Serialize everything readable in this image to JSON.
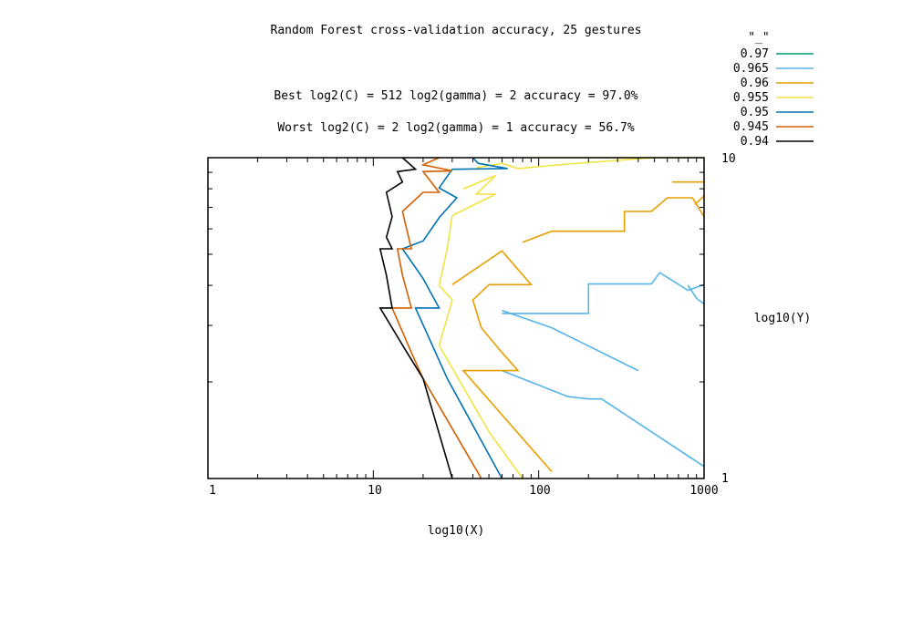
{
  "chart_data": {
    "type": "contour",
    "title": "Random Forest cross-validation accuracy, 25 gestures",
    "annotations": [
      "Best log2(C) = 512  log2(gamma) = 2  accuracy = 97.0%",
      "Worst log2(C) = 2  log2(gamma) = 1   accuracy = 56.7%"
    ],
    "xlabel": "log10(X)",
    "ylabel": "log10(Y)",
    "xscale": "log",
    "yscale": "log",
    "xlim": [
      1,
      1000
    ],
    "ylim": [
      1,
      10
    ],
    "xticks": [
      "1",
      "10",
      "100",
      "1000"
    ],
    "yticks": [
      "1",
      "10"
    ],
    "grid": false,
    "legend_title": "\"_\"",
    "legend_position": "top-right",
    "series": [
      {
        "name": "0.97",
        "color": "#009e73",
        "points": []
      },
      {
        "name": "0.965",
        "color": "#56b4e9",
        "points": [
          [
            60,
            3.27
          ],
          [
            72,
            3.27
          ],
          [
            200,
            3.27
          ],
          [
            200,
            4.04
          ],
          [
            480,
            4.04
          ],
          [
            540,
            4.38
          ],
          [
            800,
            3.86
          ],
          [
            1000,
            4.02
          ]
        ]
      },
      {
        "name": "0.965",
        "color": "#56b4e9",
        "points": [
          [
            1000,
            3.5
          ],
          [
            900,
            3.65
          ],
          [
            800,
            4.0
          ]
        ]
      },
      {
        "name": "0.965",
        "color": "#56b4e9",
        "points": [
          [
            60,
            3.34
          ],
          [
            120,
            2.95
          ],
          [
            400,
            2.17
          ]
        ]
      },
      {
        "name": "0.965",
        "color": "#56b4e9",
        "points": [
          [
            60,
            2.17
          ],
          [
            150,
            1.8
          ],
          [
            200,
            1.77
          ],
          [
            240,
            1.77
          ],
          [
            1000,
            1.09
          ]
        ]
      },
      {
        "name": "0.96",
        "color": "#e69f00",
        "points": [
          [
            30,
            4.02
          ],
          [
            60,
            5.12
          ],
          [
            90,
            4.02
          ],
          [
            50,
            4.02
          ],
          [
            40,
            3.6
          ],
          [
            45,
            2.95
          ],
          [
            60,
            2.47
          ],
          [
            75,
            2.17
          ],
          [
            35,
            2.17
          ],
          [
            120,
            1.05
          ]
        ]
      },
      {
        "name": "0.96",
        "color": "#e69f00",
        "points": [
          [
            80,
            5.45
          ],
          [
            120,
            5.9
          ],
          [
            330,
            5.9
          ],
          [
            330,
            6.8
          ],
          [
            480,
            6.8
          ],
          [
            600,
            7.5
          ],
          [
            850,
            7.5
          ],
          [
            1000,
            6.55
          ]
        ]
      },
      {
        "name": "0.96",
        "color": "#e69f00",
        "points": [
          [
            640,
            8.4
          ],
          [
            1000,
            8.4
          ]
        ]
      },
      {
        "name": "0.96",
        "color": "#e69f00",
        "points": [
          [
            880,
            7.15
          ],
          [
            1000,
            7.6
          ]
        ]
      },
      {
        "name": "0.955",
        "color": "#f0e442",
        "points": [
          [
            80,
            10.0
          ],
          [
            1000,
            10.0
          ]
        ]
      },
      {
        "name": "0.955",
        "color": "#f0e442",
        "points": [
          [
            42,
            9.3
          ],
          [
            60,
            9.6
          ],
          [
            75,
            9.25
          ],
          [
            150,
            9.55
          ],
          [
            500,
            10.0
          ]
        ]
      },
      {
        "name": "0.955",
        "color": "#f0e442",
        "points": [
          [
            35,
            8.0
          ],
          [
            55,
            8.8
          ],
          [
            42,
            7.7
          ],
          [
            55,
            7.7
          ],
          [
            30,
            6.6
          ],
          [
            28,
            5.2
          ],
          [
            25,
            4.0
          ],
          [
            30,
            3.6
          ],
          [
            25,
            2.6
          ],
          [
            50,
            1.4
          ],
          [
            80,
            1.0
          ]
        ]
      },
      {
        "name": "0.95",
        "color": "#0072b2",
        "points": [
          [
            40,
            10.0
          ],
          [
            43,
            9.6
          ],
          [
            65,
            9.25
          ],
          [
            30,
            9.2
          ],
          [
            25,
            8.05
          ],
          [
            32,
            7.5
          ],
          [
            25,
            6.5
          ],
          [
            20,
            5.5
          ],
          [
            15,
            5.2
          ],
          [
            20,
            4.2
          ],
          [
            25,
            3.4
          ],
          [
            18,
            3.4
          ],
          [
            28,
            2.05
          ],
          [
            60,
            1.0
          ]
        ]
      },
      {
        "name": "0.945",
        "color": "#d55e00",
        "points": [
          [
            25,
            10.0
          ],
          [
            20,
            9.5
          ],
          [
            30,
            9.1
          ],
          [
            20,
            9.05
          ],
          [
            25,
            7.8
          ],
          [
            20,
            7.8
          ],
          [
            15,
            6.8
          ],
          [
            17,
            5.2
          ],
          [
            14,
            5.2
          ],
          [
            15,
            4.3
          ],
          [
            17,
            3.4
          ],
          [
            13,
            3.4
          ],
          [
            17,
            2.47
          ],
          [
            20,
            2.05
          ],
          [
            45,
            1.0
          ]
        ]
      },
      {
        "name": "0.94",
        "color": "#000000",
        "points": [
          [
            15,
            10.0
          ],
          [
            18,
            9.2
          ],
          [
            14,
            9.05
          ],
          [
            15,
            8.4
          ],
          [
            12,
            7.8
          ],
          [
            13,
            6.55
          ],
          [
            12,
            5.65
          ],
          [
            13,
            5.2
          ],
          [
            11,
            5.2
          ],
          [
            12,
            4.3
          ],
          [
            13,
            3.4
          ],
          [
            11,
            3.4
          ],
          [
            16,
            2.47
          ],
          [
            20,
            2.05
          ],
          [
            30,
            1.0
          ]
        ]
      }
    ]
  }
}
